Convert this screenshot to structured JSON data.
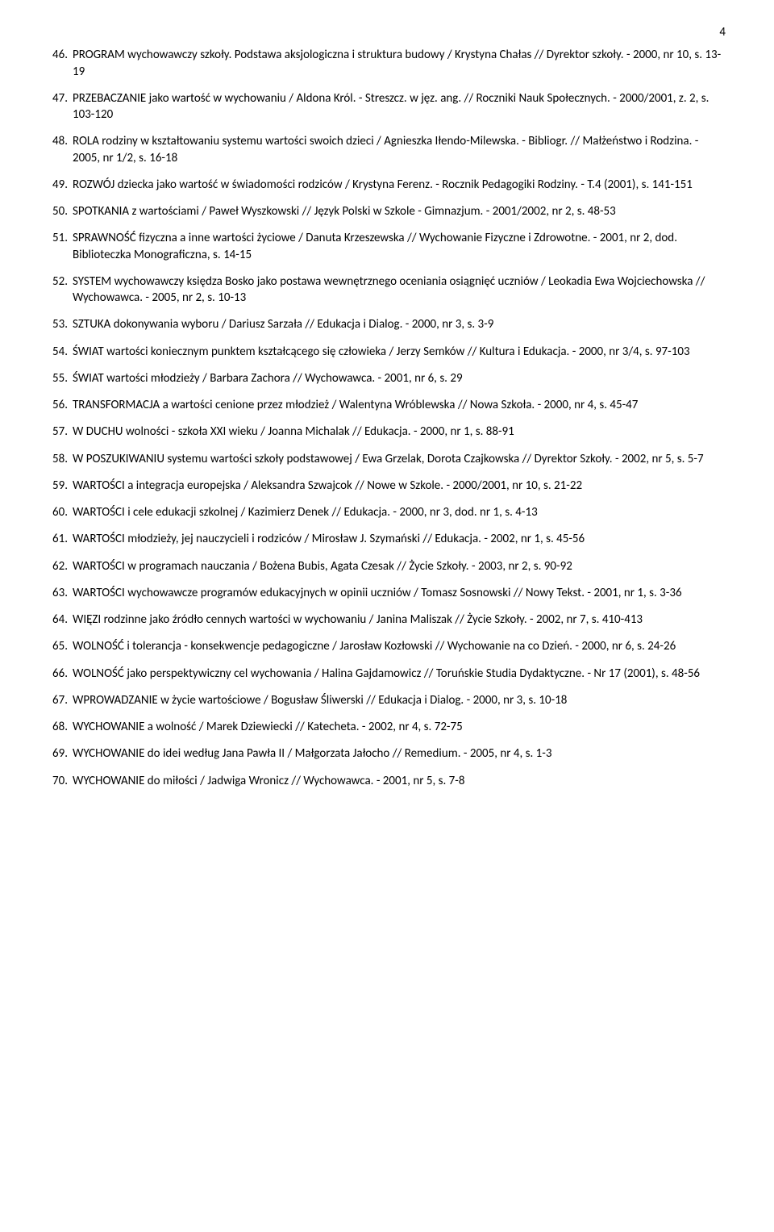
{
  "page_number": "4",
  "entries": [
    {
      "num": "46.",
      "text": "PROGRAM wychowawczy szkoły. Podstawa aksjologiczna i struktura budowy / Krystyna Chałas // Dyrektor szkoły. - 2000, nr 10, s. 13-19"
    },
    {
      "num": "47.",
      "text": "PRZEBACZANIE jako wartość w wychowaniu / Aldona Król. - Streszcz. w jęz. ang. // Roczniki Nauk Społecznych. - 2000/2001, z. 2, s. 103-120"
    },
    {
      "num": "48.",
      "text": "ROLA rodziny w kształtowaniu systemu wartości swoich dzieci / Agnieszka Iłendo-Milewska. - Bibliogr. // Małżeństwo i Rodzina. - 2005, nr 1/2, s. 16-18"
    },
    {
      "num": "49.",
      "text": "ROZWÓJ dziecka jako wartość w świadomości rodziców / Krystyna Ferenz. - Rocznik Pedagogiki Rodziny. - T.4 (2001), s. 141-151"
    },
    {
      "num": "50.",
      "text": "SPOTKANIA z wartościami / Paweł Wyszkowski // Język Polski w Szkole - Gimnazjum. - 2001/2002, nr 2, s. 48-53"
    },
    {
      "num": "51.",
      "text": "SPRAWNOŚĆ fizyczna a inne wartości życiowe / Danuta Krzeszewska // Wychowanie Fizyczne i Zdrowotne. - 2001, nr 2, dod. Biblioteczka Monograficzna, s. 14-15"
    },
    {
      "num": "52.",
      "text": "SYSTEM wychowawczy księdza Bosko jako postawa wewnętrznego oceniania osiągnięć uczniów / Leokadia Ewa Wojciechowska // Wychowawca. - 2005, nr 2, s. 10-13"
    },
    {
      "num": "53.",
      "text": "SZTUKA dokonywania wyboru / Dariusz Sarzała // Edukacja i Dialog. - 2000, nr 3, s. 3-9"
    },
    {
      "num": "54.",
      "text": "ŚWIAT wartości koniecznym punktem kształcącego się człowieka / Jerzy Semków // Kultura i Edukacja. - 2000, nr 3/4, s. 97-103"
    },
    {
      "num": "55.",
      "text": "ŚWIAT wartości młodzieży / Barbara Zachora // Wychowawca. - 2001, nr 6, s. 29"
    },
    {
      "num": "56.",
      "text": "TRANSFORMACJA a wartości cenione przez młodzież / Walentyna Wróblewska // Nowa Szkoła. - 2000, nr 4, s. 45-47"
    },
    {
      "num": "57.",
      "text": "W DUCHU wolności - szkoła XXI wieku / Joanna Michalak // Edukacja. - 2000, nr 1, s. 88-91"
    },
    {
      "num": "58.",
      "text": "W POSZUKIWANIU systemu wartości szkoły podstawowej / Ewa Grzelak, Dorota Czajkowska // Dyrektor Szkoły. - 2002, nr 5, s. 5-7"
    },
    {
      "num": "59.",
      "text": "WARTOŚCI a integracja europejska / Aleksandra Szwajcok // Nowe w Szkole. - 2000/2001, nr 10, s. 21-22"
    },
    {
      "num": "60.",
      "text": "WARTOŚCI i cele edukacji szkolnej / Kazimierz Denek // Edukacja. - 2000, nr 3, dod. nr 1, s. 4-13"
    },
    {
      "num": "61.",
      "text": "WARTOŚCI młodzieży, jej nauczycieli i rodziców / Mirosław J. Szymański // Edukacja. - 2002, nr 1, s. 45-56"
    },
    {
      "num": "62.",
      "text": "WARTOŚCI w programach nauczania / Bożena Bubis, Agata Czesak // Życie Szkoły. - 2003, nr 2, s. 90-92"
    },
    {
      "num": "63.",
      "text": "WARTOŚCI wychowawcze programów edukacyjnych w opinii uczniów / Tomasz Sosnowski // Nowy Tekst. - 2001, nr 1, s. 3-36"
    },
    {
      "num": "64.",
      "text": "WIĘZI rodzinne jako źródło cennych wartości w wychowaniu / Janina Maliszak // Życie Szkoły. - 2002, nr 7, s. 410-413"
    },
    {
      "num": "65.",
      "text": "WOLNOŚĆ i tolerancja - konsekwencje pedagogiczne / Jarosław Kozłowski // Wychowanie na co Dzień. - 2000, nr 6, s. 24-26"
    },
    {
      "num": "66.",
      "text": "WOLNOŚĆ jako perspektywiczny cel wychowania / Halina Gajdamowicz // Toruńskie Studia Dydaktyczne. - Nr 17 (2001), s. 48-56"
    },
    {
      "num": "67.",
      "text": "WPROWADZANIE w życie wartościowe / Bogusław Śliwerski // Edukacja i Dialog. - 2000, nr 3, s. 10-18"
    },
    {
      "num": "68.",
      "text": "WYCHOWANIE a wolność / Marek Dziewiecki // Katecheta. - 2002, nr 4, s. 72-75"
    },
    {
      "num": "69.",
      "text": "WYCHOWANIE do idei według Jana Pawła II / Małgorzata Jałocho // Remedium. - 2005, nr 4, s. 1-3"
    },
    {
      "num": "70.",
      "text": "WYCHOWANIE do miłości / Jadwiga Wronicz // Wychowawca. - 2001, nr 5, s. 7-8"
    }
  ]
}
